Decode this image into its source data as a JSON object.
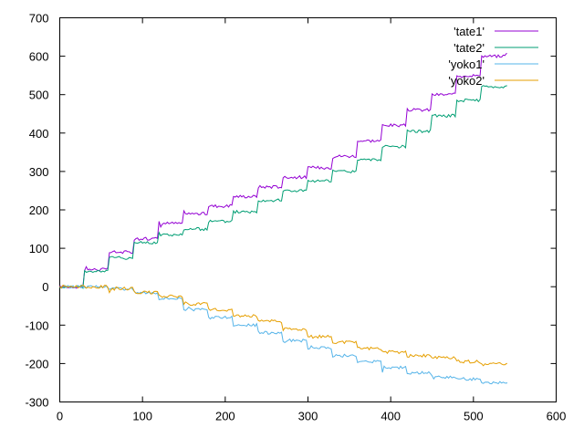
{
  "chart_data": {
    "type": "line",
    "xlim": [
      0,
      600
    ],
    "ylim": [
      -300,
      700
    ],
    "x_ticks": [
      "0",
      "100",
      "200",
      "300",
      "400",
      "500",
      "600"
    ],
    "y_ticks": [
      "700",
      "600",
      "500",
      "400",
      "300",
      "200",
      "100",
      "0",
      "-100",
      "-200",
      "-300"
    ],
    "grid": false,
    "legend_position": "top-right",
    "series": [
      {
        "name": "'tate1'",
        "color": "#9400d3",
        "x": [
          0,
          30,
          60,
          90,
          120,
          150,
          180,
          210,
          240,
          270,
          300,
          330,
          360,
          390,
          420,
          450,
          480,
          510,
          540
        ],
        "y": [
          0,
          45,
          90,
          125,
          165,
          190,
          210,
          235,
          260,
          285,
          310,
          340,
          380,
          420,
          460,
          500,
          550,
          600,
          605
        ]
      },
      {
        "name": "'tate2'",
        "color": "#009e73",
        "x": [
          0,
          30,
          60,
          90,
          120,
          150,
          180,
          210,
          240,
          270,
          300,
          330,
          360,
          390,
          420,
          450,
          480,
          510,
          540
        ],
        "y": [
          0,
          40,
          75,
          115,
          135,
          150,
          170,
          195,
          225,
          250,
          275,
          300,
          330,
          365,
          405,
          445,
          485,
          520,
          525
        ]
      },
      {
        "name": "'yoko1'",
        "color": "#56b4e9",
        "x": [
          0,
          30,
          60,
          90,
          120,
          150,
          180,
          210,
          240,
          270,
          300,
          330,
          360,
          390,
          420,
          450,
          480,
          510,
          540
        ],
        "y": [
          0,
          0,
          -5,
          -15,
          -30,
          -60,
          -80,
          -100,
          -120,
          -140,
          -160,
          -180,
          -195,
          -210,
          -225,
          -235,
          -240,
          -250,
          -250
        ]
      },
      {
        "name": "'yoko2'",
        "color": "#e69f00",
        "x": [
          0,
          30,
          60,
          90,
          120,
          150,
          180,
          210,
          240,
          270,
          300,
          330,
          360,
          390,
          420,
          450,
          480,
          510,
          540
        ],
        "y": [
          0,
          0,
          -5,
          -15,
          -25,
          -45,
          -60,
          -75,
          -90,
          -110,
          -130,
          -145,
          -160,
          -170,
          -180,
          -185,
          -195,
          -200,
          -200
        ]
      }
    ]
  }
}
